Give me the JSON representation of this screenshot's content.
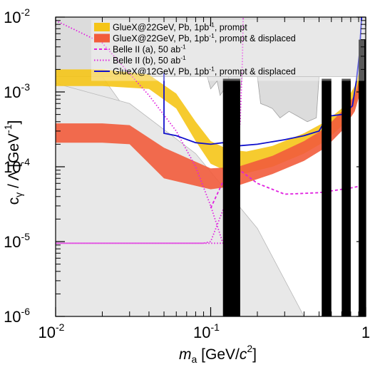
{
  "chart_data": {
    "type": "line",
    "title": "",
    "x_scale": "log",
    "y_scale": "log",
    "xlim": [
      0.01,
      1.0
    ],
    "ylim": [
      1e-06,
      0.01
    ],
    "xlabel": {
      "italic": "m",
      "sub": "a",
      "text": " [GeV/",
      "italic2": "c",
      "sup": "2",
      "close": "]"
    },
    "ylabel": {
      "main": "c",
      "sub": "γ",
      "text": " / Λ [GeV",
      "sup": "-1",
      "close": "]"
    },
    "x_ticks": [
      {
        "value": 0.01,
        "base": "10",
        "exp": "-2"
      },
      {
        "value": 0.1,
        "base": "10",
        "exp": "-1"
      },
      {
        "value": 1.0,
        "base": "1",
        "exp": ""
      }
    ],
    "y_ticks": [
      {
        "value": 1e-06,
        "base": "10",
        "exp": "-6"
      },
      {
        "value": 1e-05,
        "base": "10",
        "exp": "-5"
      },
      {
        "value": 0.0001,
        "base": "10",
        "exp": "-4"
      },
      {
        "value": 0.001,
        "base": "10",
        "exp": "-3"
      },
      {
        "value": 0.01,
        "base": "10",
        "exp": "-2"
      }
    ],
    "legend": {
      "placement": "top-right",
      "entries": [
        {
          "name": "GlueX@22GeV, Pb, 1pb",
          "sup": "-1",
          "rest": ", prompt",
          "color": "#f5c518",
          "style": "band"
        },
        {
          "name": "GlueX@22GeV, Pb, 1pb",
          "sup": "-1",
          "rest": ", prompt & displaced",
          "color": "#f25c3c",
          "style": "band"
        },
        {
          "name": "Belle II (a), 50 ab",
          "sup": "-1",
          "rest": "",
          "color": "#e020e0",
          "style": "dashed"
        },
        {
          "name": "Belle II (b), 50 ab",
          "sup": "-1",
          "rest": "",
          "color": "#e020e0",
          "style": "dotted"
        },
        {
          "name": "GlueX@12GeV, Pb, 1pb",
          "sup": "-1",
          "rest": ", prompt & displaced",
          "color": "#1010cc",
          "style": "solid"
        }
      ]
    },
    "excluded_regions": [
      {
        "color": "#e8e8e8",
        "edge": "#b8b8b8",
        "points": [
          [
            0.01,
            0.01
          ],
          [
            0.01,
            0.0016
          ],
          [
            0.02,
            0.0016
          ],
          [
            0.1,
            1.5e-05
          ],
          [
            0.3,
            1e-06
          ],
          [
            0.01,
            1e-06
          ]
        ]
      },
      {
        "color": "#e8e8e8",
        "edge": "#b8b8b8",
        "points": [
          [
            0.01,
            0.0013
          ],
          [
            0.03,
            0.0007
          ],
          [
            0.08,
            0.00015
          ],
          [
            0.2,
            1.5e-05
          ],
          [
            0.4,
            1e-06
          ],
          [
            0.01,
            1e-06
          ]
        ]
      },
      {
        "color": "#dcdcdc",
        "edge": "#a0a0a0",
        "points": [
          [
            0.01,
            0.01
          ],
          [
            1.0,
            0.01
          ],
          [
            1.0,
            0.0016
          ],
          [
            0.01,
            0.0016
          ]
        ]
      },
      {
        "color": "#dcdcdc",
        "edge": "#a0a0a0",
        "points": [
          [
            0.095,
            0.0016
          ],
          [
            0.1,
            0.0011
          ],
          [
            0.11,
            0.0014
          ],
          [
            0.115,
            0.0009
          ],
          [
            0.13,
            0.0013
          ],
          [
            0.15,
            0.0012
          ],
          [
            0.16,
            0.0016
          ],
          [
            0.095,
            0.0016
          ]
        ]
      },
      {
        "color": "#dcdcdc",
        "edge": "#a0a0a0",
        "points": [
          [
            0.2,
            0.0016
          ],
          [
            0.21,
            0.0007
          ],
          [
            0.23,
            0.00065
          ],
          [
            0.25,
            0.0006
          ],
          [
            0.28,
            0.00045
          ],
          [
            0.32,
            0.00055
          ],
          [
            0.36,
            0.00048
          ],
          [
            0.42,
            0.0004
          ],
          [
            0.48,
            0.00045
          ],
          [
            0.5,
            0.0016
          ]
        ]
      },
      {
        "color": "#dcdcdc",
        "edge": "#a0a0a0",
        "points": [
          [
            0.13,
            0.0016
          ],
          [
            0.14,
            0.00085
          ],
          [
            0.15,
            0.0007
          ],
          [
            0.16,
            0.0016
          ]
        ]
      }
    ],
    "series": [
      {
        "name": "GlueX@22GeV, Pb, 1pb-1, prompt",
        "kind": "band",
        "color": "#f5c518",
        "upper": [
          [
            0.01,
            0.002
          ],
          [
            0.02,
            0.002
          ],
          [
            0.04,
            0.0017
          ],
          [
            0.06,
            0.00095
          ],
          [
            0.08,
            0.0004
          ],
          [
            0.1,
            0.00022
          ],
          [
            0.13,
            0.00017
          ],
          [
            0.17,
            0.00016
          ],
          [
            0.25,
            0.00019
          ],
          [
            0.4,
            0.00028
          ],
          [
            0.55,
            0.0004
          ],
          [
            0.7,
            0.0006
          ],
          [
            0.85,
            0.0012
          ],
          [
            0.97,
            0.0028
          ]
        ],
        "lower": [
          [
            0.01,
            0.0012
          ],
          [
            0.02,
            0.0012
          ],
          [
            0.04,
            0.0011
          ],
          [
            0.06,
            0.0006
          ],
          [
            0.08,
            0.00022
          ],
          [
            0.1,
            0.00011
          ],
          [
            0.13,
            8.5e-05
          ],
          [
            0.17,
            8.2e-05
          ],
          [
            0.25,
            0.0001
          ],
          [
            0.4,
            0.00015
          ],
          [
            0.55,
            0.00022
          ],
          [
            0.7,
            0.00035
          ],
          [
            0.85,
            0.0007
          ],
          [
            0.97,
            0.0015
          ]
        ]
      },
      {
        "name": "GlueX@22GeV, Pb, 1pb-1, prompt & displaced",
        "kind": "band",
        "color": "#f25c3c",
        "upper": [
          [
            0.01,
            0.00038
          ],
          [
            0.02,
            0.00038
          ],
          [
            0.03,
            0.00036
          ],
          [
            0.05,
            0.00018
          ],
          [
            0.1,
            9.5e-05
          ],
          [
            0.15,
            0.0001
          ],
          [
            0.25,
            0.00014
          ],
          [
            0.4,
            0.00022
          ],
          [
            0.55,
            0.00033
          ],
          [
            0.7,
            0.00055
          ],
          [
            0.85,
            0.0009
          ],
          [
            0.97,
            0.0024
          ]
        ],
        "lower": [
          [
            0.01,
            0.00021
          ],
          [
            0.02,
            0.00021
          ],
          [
            0.03,
            0.0002
          ],
          [
            0.05,
            7e-05
          ],
          [
            0.1,
            5e-05
          ],
          [
            0.15,
            5.6e-05
          ],
          [
            0.25,
            8e-05
          ],
          [
            0.4,
            0.00012
          ],
          [
            0.55,
            0.00018
          ],
          [
            0.7,
            0.0003
          ],
          [
            0.85,
            0.00055
          ],
          [
            0.97,
            0.0014
          ]
        ]
      },
      {
        "name": "Belle II (a), 50 ab-1",
        "kind": "line",
        "color": "#e020e0",
        "dash": "4,3",
        "points": [
          [
            0.1,
            2.8e-05
          ],
          [
            0.13,
            9e-05
          ],
          [
            0.16,
            8.5e-05
          ],
          [
            0.2,
            6e-05
          ],
          [
            0.3,
            4.3e-05
          ],
          [
            0.5,
            4.5e-05
          ],
          [
            0.8,
            5.2e-05
          ],
          [
            1.0,
            5.7e-05
          ]
        ]
      },
      {
        "name": "Belle II (b), 50 ab-1",
        "kind": "line",
        "color": "#e020e0",
        "dash": "1.5,2.5",
        "points": [
          [
            0.01,
            0.009
          ],
          [
            0.02,
            0.0045
          ],
          [
            0.04,
            0.0009
          ],
          [
            0.06,
            0.0003
          ],
          [
            0.08,
            0.0001
          ],
          [
            0.1,
            3e-05
          ],
          [
            0.12,
            9.5e-06
          ],
          [
            0.015,
            9.5e-06
          ],
          [
            0.01,
            9.5e-06
          ],
          [
            0.09,
            9.5e-06
          ],
          [
            0.1,
            1e-05
          ],
          [
            0.14,
            6e-05
          ],
          [
            0.155,
            0.0004
          ],
          [
            0.16,
            0.0025
          ],
          [
            0.162,
            0.01
          ]
        ]
      },
      {
        "name": "GlueX@12GeV, Pb, 1pb-1, prompt & displaced",
        "kind": "line",
        "color": "#1010cc",
        "dash": "",
        "points": [
          [
            0.05,
            0.0018
          ],
          [
            0.05,
            0.00028
          ],
          [
            0.06,
            0.00026
          ],
          [
            0.08,
            0.00021
          ],
          [
            0.1,
            0.0002
          ],
          [
            0.12,
            0.00021
          ],
          [
            0.13,
            0.00019
          ],
          [
            0.15,
            0.00019
          ],
          [
            0.2,
            0.0002
          ],
          [
            0.3,
            0.00023
          ],
          [
            0.4,
            0.00026
          ],
          [
            0.5,
            0.0003
          ],
          [
            0.56,
            0.00045
          ],
          [
            0.6,
            0.00048
          ],
          [
            0.7,
            0.0005
          ],
          [
            0.75,
            0.00055
          ],
          [
            0.82,
            0.00065
          ],
          [
            0.87,
            0.0014
          ],
          [
            0.91,
            0.0032
          ],
          [
            0.94,
            0.01
          ]
        ]
      }
    ],
    "black_bars": [
      {
        "x0": 0.12,
        "x1": 0.155,
        "ytop": 0.0015
      },
      {
        "x0": 0.52,
        "x1": 0.6,
        "ytop": 0.0015
      },
      {
        "x0": 0.7,
        "x1": 0.8,
        "ytop": 0.0015
      },
      {
        "x0": 0.9,
        "x1": 1.0,
        "ytop": 0.005
      }
    ]
  }
}
